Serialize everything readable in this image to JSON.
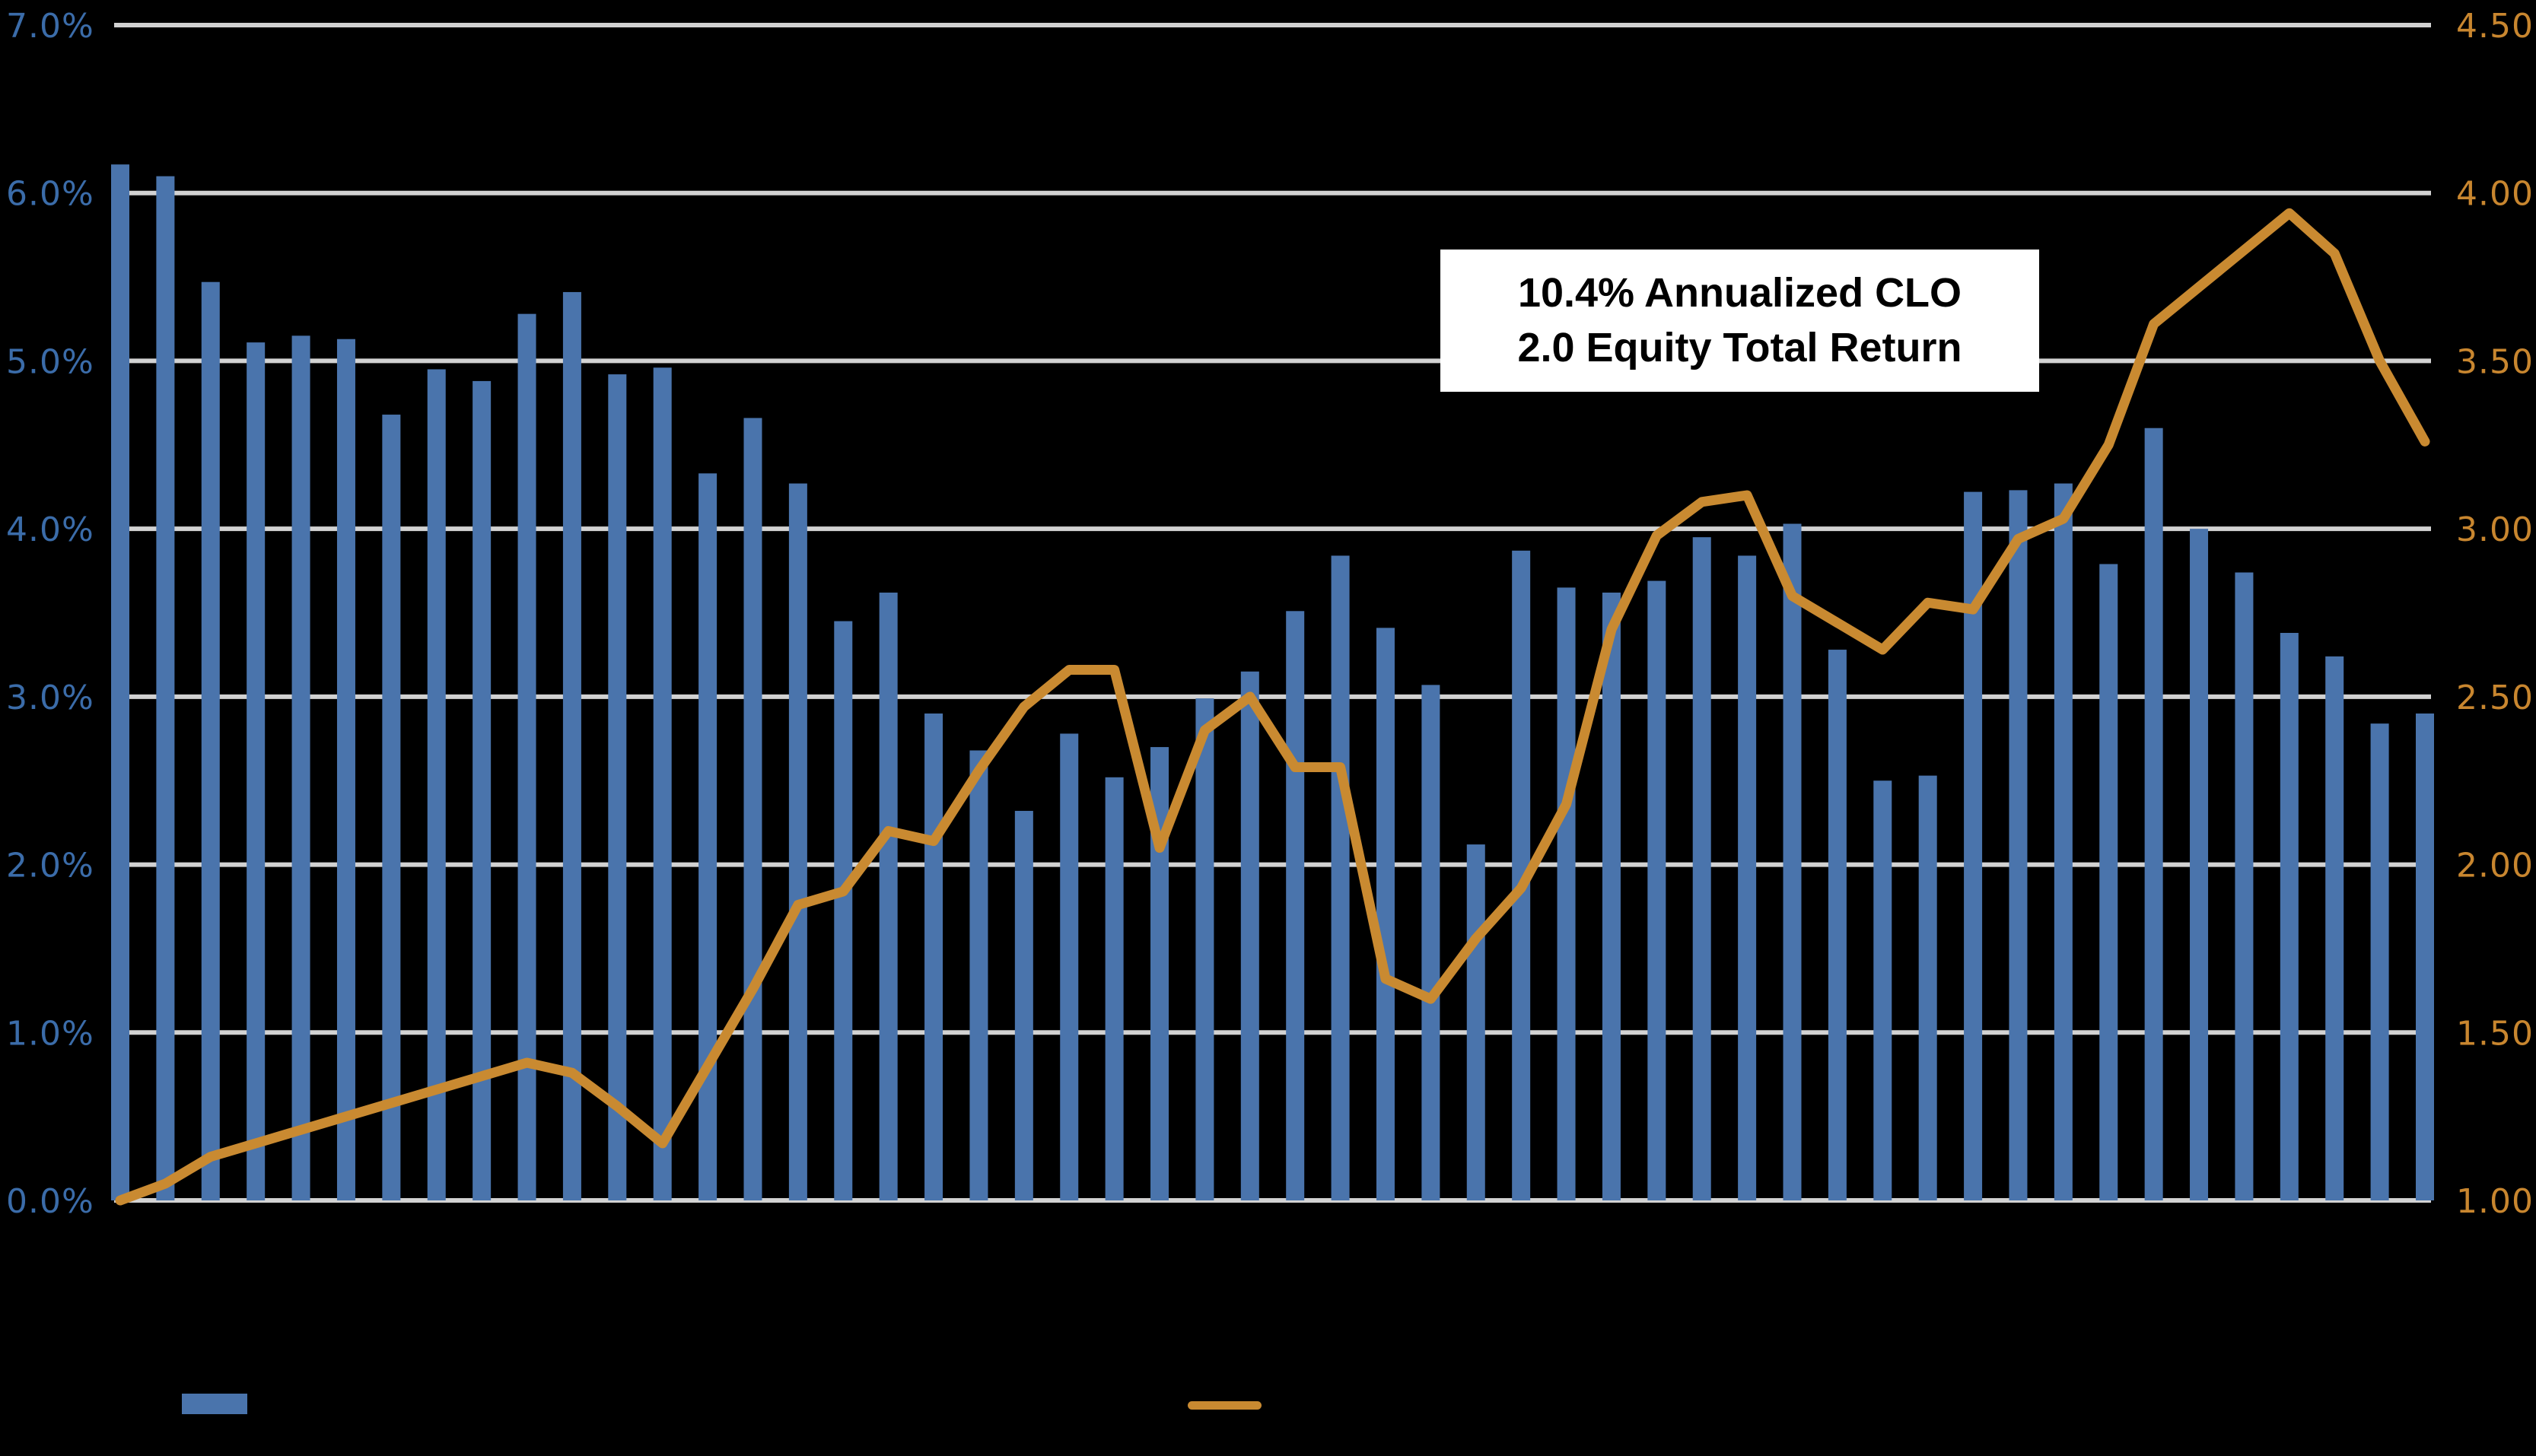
{
  "chart_data": {
    "type": "combo-bar-line",
    "background_color": "#000000",
    "gridline_color": "#D2D2D2",
    "grid": true,
    "legend_position": "bottom",
    "annotation": {
      "line1": "10.4% Annualized CLO",
      "line2": "2.0 Equity Total Return",
      "box_color": "#FFFFFF",
      "text_color": "#000000"
    },
    "left_axis": {
      "min": 0.0,
      "max": 7.0,
      "unit": "%",
      "tick_labels_top_to_bottom": [
        "7.0%",
        "6.0%",
        "5.0%",
        "4.0%",
        "3.0%",
        "2.0%",
        "1.0%",
        "0.0%"
      ],
      "label_color": "#3B6CA9"
    },
    "right_axis": {
      "min": 1.0,
      "max": 4.5,
      "tick_labels_top_to_bottom": [
        "4.50",
        "4.00",
        "3.50",
        "3.00",
        "2.50",
        "2.00",
        "1.50",
        "1.00"
      ],
      "label_color": "#C8862F"
    },
    "series": [
      {
        "name": "quarterly-distributions-bar",
        "type": "bar",
        "axis": "left",
        "color": "#4A74AC",
        "values": [
          6.17,
          6.1,
          5.47,
          5.11,
          5.15,
          5.13,
          4.68,
          4.95,
          4.88,
          5.28,
          5.41,
          4.92,
          4.96,
          4.33,
          4.66,
          4.27,
          3.45,
          3.62,
          2.9,
          2.68,
          2.32,
          2.78,
          2.52,
          2.7,
          2.99,
          3.15,
          3.51,
          3.84,
          3.41,
          3.07,
          2.12,
          3.87,
          3.65,
          3.62,
          3.69,
          3.95,
          3.84,
          4.03,
          3.28,
          2.5,
          2.53,
          4.22,
          4.23,
          4.27,
          3.79,
          4.6,
          4.0,
          3.74,
          3.38,
          3.24,
          2.84,
          2.9
        ]
      },
      {
        "name": "clo2-equity-total-return-line",
        "type": "line",
        "axis": "right",
        "color": "#C98A31",
        "values": [
          1.0,
          1.05,
          1.13,
          1.17,
          1.21,
          1.25,
          1.29,
          1.33,
          1.37,
          1.41,
          1.38,
          1.28,
          1.17,
          1.4,
          1.63,
          1.88,
          1.92,
          2.1,
          2.07,
          2.28,
          2.47,
          2.58,
          2.58,
          2.05,
          2.4,
          2.5,
          2.29,
          2.29,
          1.66,
          1.6,
          1.78,
          1.93,
          2.18,
          2.7,
          2.98,
          3.08,
          3.1,
          2.8,
          2.72,
          2.64,
          2.78,
          2.76,
          2.97,
          3.03,
          3.25,
          3.61,
          3.72,
          3.83,
          3.94,
          3.82,
          3.5,
          3.26
        ]
      }
    ]
  },
  "annotation": {
    "line1": "10.4% Annualized CLO",
    "line2": "2.0 Equity Total Return"
  }
}
